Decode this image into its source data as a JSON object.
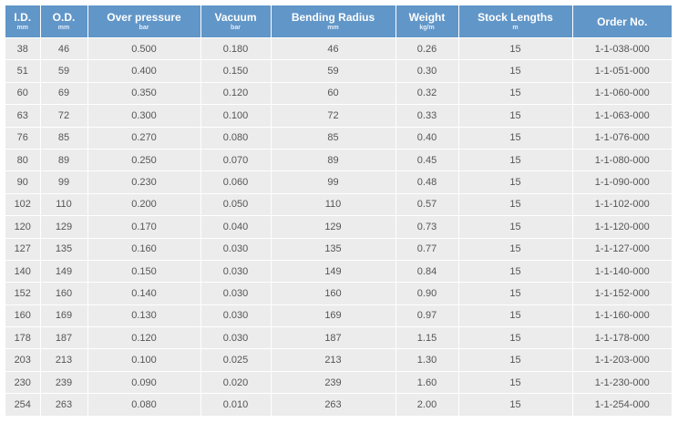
{
  "columns": [
    {
      "label": "I.D.",
      "unit": "mm"
    },
    {
      "label": "O.D.",
      "unit": "mm"
    },
    {
      "label": "Over pressure",
      "unit": "bar"
    },
    {
      "label": "Vacuum",
      "unit": "bar"
    },
    {
      "label": "Bending Radius",
      "unit": "mm"
    },
    {
      "label": "Weight",
      "unit": "kg/m"
    },
    {
      "label": "Stock Lengths",
      "unit": "m"
    },
    {
      "label": "Order No.",
      "unit": ""
    }
  ],
  "rows": [
    [
      "38",
      "46",
      "0.500",
      "0.180",
      "46",
      "0.26",
      "15",
      "1-1-038-000"
    ],
    [
      "51",
      "59",
      "0.400",
      "0.150",
      "59",
      "0.30",
      "15",
      "1-1-051-000"
    ],
    [
      "60",
      "69",
      "0.350",
      "0.120",
      "60",
      "0.32",
      "15",
      "1-1-060-000"
    ],
    [
      "63",
      "72",
      "0.300",
      "0.100",
      "72",
      "0.33",
      "15",
      "1-1-063-000"
    ],
    [
      "76",
      "85",
      "0.270",
      "0.080",
      "85",
      "0.40",
      "15",
      "1-1-076-000"
    ],
    [
      "80",
      "89",
      "0.250",
      "0.070",
      "89",
      "0.45",
      "15",
      "1-1-080-000"
    ],
    [
      "90",
      "99",
      "0.230",
      "0.060",
      "99",
      "0.48",
      "15",
      "1-1-090-000"
    ],
    [
      "102",
      "110",
      "0.200",
      "0.050",
      "110",
      "0.57",
      "15",
      "1-1-102-000"
    ],
    [
      "120",
      "129",
      "0.170",
      "0.040",
      "129",
      "0.73",
      "15",
      "1-1-120-000"
    ],
    [
      "127",
      "135",
      "0.160",
      "0.030",
      "135",
      "0.77",
      "15",
      "1-1-127-000"
    ],
    [
      "140",
      "149",
      "0.150",
      "0.030",
      "149",
      "0.84",
      "15",
      "1-1-140-000"
    ],
    [
      "152",
      "160",
      "0.140",
      "0.030",
      "160",
      "0.90",
      "15",
      "1-1-152-000"
    ],
    [
      "160",
      "169",
      "0.130",
      "0.030",
      "169",
      "0.97",
      "15",
      "1-1-160-000"
    ],
    [
      "178",
      "187",
      "0.120",
      "0.030",
      "187",
      "1.15",
      "15",
      "1-1-178-000"
    ],
    [
      "203",
      "213",
      "0.100",
      "0.025",
      "213",
      "1.30",
      "15",
      "1-1-203-000"
    ],
    [
      "230",
      "239",
      "0.090",
      "0.020",
      "239",
      "1.60",
      "15",
      "1-1-230-000"
    ],
    [
      "254",
      "263",
      "0.080",
      "0.010",
      "263",
      "2.00",
      "15",
      "1-1-254-000"
    ]
  ],
  "colors": {
    "header_background": "#6196c8",
    "header_text": "#ffffff",
    "row_background": "#ececec",
    "cell_text": "#555555"
  }
}
